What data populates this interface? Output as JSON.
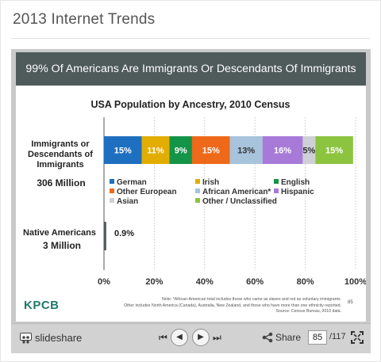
{
  "page": {
    "title": "2013 Internet Trends"
  },
  "slide": {
    "header": "99% Of Americans Are Immigrants Or Descendants Of Immigrants",
    "logo": "KPCB",
    "note_lines": [
      "Note: *African-American total includes those who came as slaves and not as voluntary immigrants.",
      "Other includes North America (Canada), Australia, New Zealand, and those who have more than one ethnicity reported.",
      "Source: Census Bureau, 2010 data."
    ],
    "page_number": "85"
  },
  "chart_data": {
    "type": "bar",
    "orientation": "horizontal",
    "stacked": true,
    "title": "USA Population by Ancestry, 2010 Census",
    "categories": [
      {
        "lines": [
          "Immigrants or",
          "Descendants of",
          "Immigrants"
        ],
        "sub": "306 Million"
      },
      {
        "lines": [
          "Native Americans"
        ],
        "sub": "3 Million"
      }
    ],
    "series": [
      {
        "name": "German",
        "color": "#1e6fc0",
        "values": [
          15,
          0
        ]
      },
      {
        "name": "Irish",
        "color": "#e3ad00",
        "values": [
          11,
          0
        ]
      },
      {
        "name": "English",
        "color": "#139448",
        "values": [
          9,
          0
        ]
      },
      {
        "name": "Other European",
        "color": "#ee6a1a",
        "values": [
          15,
          0
        ]
      },
      {
        "name": "African American*",
        "color": "#a7c4dc",
        "values": [
          13,
          0
        ]
      },
      {
        "name": "Hispanic",
        "color": "#a77ad8",
        "values": [
          16,
          0
        ]
      },
      {
        "name": "Asian",
        "color": "#cfd0d6",
        "values": [
          5,
          0
        ]
      },
      {
        "name": "Other / Unclassified",
        "color": "#8cc43f",
        "values": [
          15,
          0
        ]
      }
    ],
    "native_value": 0.9,
    "native_label": "0.9%",
    "native_color": "#4f5a5a",
    "segment_labels": [
      "15%",
      "11%",
      "9%",
      "15%",
      "13%",
      "16%",
      "5%",
      "15%"
    ],
    "xlim": [
      0,
      100
    ],
    "xticks": [
      "0%",
      "20%",
      "40%",
      "60%",
      "80%",
      "100%"
    ],
    "xtick_values": [
      0,
      20,
      40,
      60,
      80,
      100
    ],
    "grid": "dotted vertical",
    "legend": "below top bar"
  },
  "toolbar": {
    "brand": "slideshare",
    "share_label": "Share",
    "current_page": "85",
    "total_pages": "/117"
  }
}
